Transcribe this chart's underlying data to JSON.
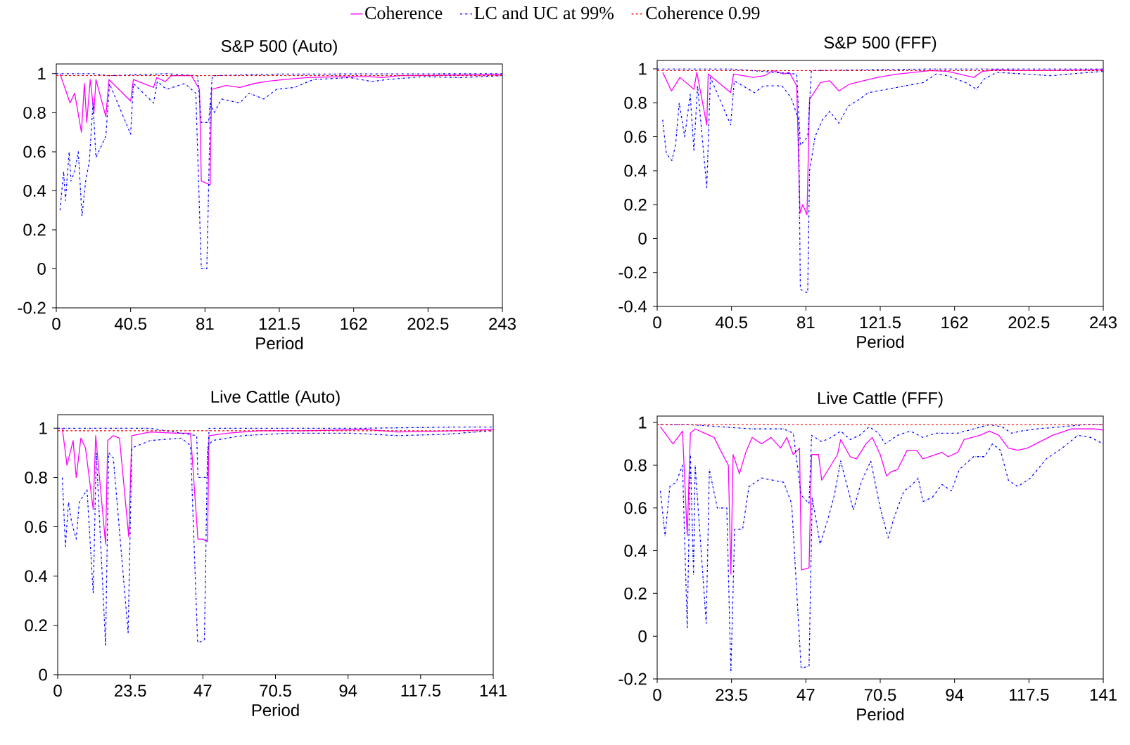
{
  "chart_data": [
    {
      "type": "line",
      "title": "S&P 500 (Auto)",
      "xlabel": "Period",
      "legend": "top",
      "xlim": [
        0,
        243
      ],
      "xticks": [
        0,
        40.5,
        81,
        121.5,
        162,
        202.5,
        243
      ],
      "ylim": [
        -0.2,
        1.05
      ],
      "yticks": [
        -0.2,
        0,
        0.2,
        0.4,
        0.6,
        0.8,
        1
      ],
      "ref_lines": [
        {
          "axis": "y",
          "value": 0.99,
          "label": "Coherence 0.99",
          "color": "#ff0000",
          "line_style": "dashed"
        }
      ],
      "series": [
        {
          "name": "Coherence",
          "color": "#ff00ff",
          "line_style": "solid",
          "x": [
            2,
            7.5,
            10,
            13.7,
            15.3,
            16.6,
            18.5,
            20.5,
            21.6,
            27,
            28.7,
            40.5,
            42,
            53,
            54.7,
            59.4,
            62.6,
            73.6,
            78,
            79,
            81.5,
            83.8,
            84.6,
            92.5,
            100,
            108,
            114.5,
            124,
            136.6,
            155.5,
            171,
            177.5,
            187,
            243
          ],
          "values": [
            1,
            0.85,
            0.9,
            0.7,
            0.95,
            0.75,
            0.97,
            0.8,
            0.97,
            0.78,
            0.97,
            0.86,
            0.97,
            0.93,
            0.98,
            0.96,
            0.99,
            0.99,
            0.92,
            0.45,
            0.44,
            0.43,
            0.92,
            0.94,
            0.93,
            0.95,
            0.96,
            0.97,
            0.98,
            0.985,
            0.985,
            0.98,
            0.99,
            0.995
          ]
        },
        {
          "name": "LC and UC at 99%",
          "color": "#0000ff",
          "line_style": "dashdot",
          "x": [
            2,
            4,
            5,
            7,
            8,
            10,
            12,
            14,
            16,
            18,
            20,
            21.6,
            27,
            29,
            40.5,
            42,
            53,
            55,
            60,
            70,
            76,
            79,
            82,
            84,
            86,
            90,
            100,
            105,
            113,
            120,
            130,
            140,
            160,
            172,
            180,
            200,
            220,
            243
          ],
          "values": [
            0.3,
            0.5,
            0.35,
            0.6,
            0.45,
            0.5,
            0.6,
            0.27,
            0.45,
            0.55,
            0.85,
            0.57,
            0.68,
            0.95,
            0.69,
            0.95,
            0.85,
            0.96,
            0.92,
            0.95,
            0.9,
            0,
            0,
            0.85,
            0.8,
            0.87,
            0.85,
            0.9,
            0.87,
            0.92,
            0.93,
            0.97,
            0.98,
            0.96,
            0.97,
            0.985,
            0.98,
            0.99
          ]
        },
        {
          "color": "#0000ff",
          "line_style": "dashdot",
          "x": [
            0,
            20,
            28,
            60,
            77,
            79,
            83,
            85,
            120,
            243
          ],
          "values": [
            1,
            1,
            0.99,
            1,
            0.99,
            0.75,
            0.75,
            0.99,
            0.998,
            1
          ]
        }
      ]
    },
    {
      "type": "line",
      "title": "S&P 500 (FFF)",
      "xlabel": "Period",
      "xlim": [
        0,
        243
      ],
      "xticks": [
        0,
        40.5,
        81,
        121.5,
        162,
        202.5,
        243
      ],
      "ylim": [
        -0.4,
        1.05
      ],
      "yticks": [
        -0.4,
        -0.2,
        0,
        0.2,
        0.4,
        0.6,
        0.8,
        1
      ],
      "ref_lines": [
        {
          "axis": "y",
          "value": 0.99,
          "color": "#ff0000",
          "line_style": "dashed"
        }
      ],
      "series": [
        {
          "color": "#ff00ff",
          "line_style": "solid",
          "x": [
            3,
            7.8,
            12.4,
            20,
            21.6,
            27,
            27.8,
            40,
            41.6,
            52.4,
            58.5,
            63,
            69,
            72,
            76,
            77.8,
            79.3,
            81.6,
            83,
            89,
            94,
            99,
            104.7,
            112.4,
            120,
            131,
            149,
            158.5,
            172.4,
            177,
            184.7,
            197,
            212,
            243
          ],
          "values": [
            0.98,
            0.87,
            0.95,
            0.88,
            0.98,
            0.67,
            0.97,
            0.86,
            0.97,
            0.95,
            0.96,
            0.99,
            0.97,
            0.98,
            0.9,
            0.15,
            0.2,
            0.14,
            0.82,
            0.92,
            0.93,
            0.87,
            0.91,
            0.93,
            0.95,
            0.97,
            0.99,
            0.985,
            0.95,
            0.985,
            0.995,
            0.99,
            0.99,
            0.995
          ]
        },
        {
          "color": "#0000ff",
          "line_style": "dashdot",
          "x": [
            3,
            5,
            8,
            10,
            12,
            15,
            18,
            20,
            22,
            27,
            29,
            40,
            42,
            53,
            58,
            68,
            73,
            77,
            78,
            82,
            83,
            86,
            90,
            94,
            99,
            104,
            110,
            115,
            120,
            125,
            135,
            145,
            152,
            158,
            168,
            174,
            178,
            185,
            200,
            215,
            230,
            243
          ],
          "values": [
            0.7,
            0.5,
            0.46,
            0.55,
            0.8,
            0.6,
            0.85,
            0.52,
            0.9,
            0.3,
            0.95,
            0.67,
            0.93,
            0.86,
            0.9,
            0.9,
            0.83,
            0.7,
            -0.3,
            -0.32,
            0.4,
            0.6,
            0.7,
            0.75,
            0.68,
            0.78,
            0.82,
            0.86,
            0.87,
            0.88,
            0.9,
            0.92,
            0.97,
            0.96,
            0.92,
            0.88,
            0.94,
            0.98,
            0.97,
            0.96,
            0.975,
            0.985
          ]
        },
        {
          "color": "#0000ff",
          "line_style": "dashdot",
          "x": [
            0,
            40,
            76,
            78,
            82,
            84,
            150,
            243
          ],
          "values": [
            1,
            1,
            0.97,
            0.55,
            0.6,
            0.99,
            1,
            1
          ]
        }
      ]
    },
    {
      "type": "line",
      "title": "Live Cattle (Auto)",
      "xlabel": "Period",
      "xlim": [
        0,
        141
      ],
      "xticks": [
        0,
        23.5,
        47,
        70.5,
        94,
        117.5,
        141
      ],
      "ylim": [
        0,
        1.055
      ],
      "yticks": [
        0,
        0.2,
        0.4,
        0.6,
        0.8,
        1
      ],
      "ref_lines": [
        {
          "axis": "y",
          "value": 0.99,
          "color": "#ff0000",
          "line_style": "dashed"
        }
      ],
      "series": [
        {
          "color": "#ff00ff",
          "line_style": "solid",
          "x": [
            1.5,
            3,
            5,
            6,
            7.5,
            9,
            11.5,
            12.3,
            15.5,
            16.2,
            18,
            20,
            23,
            24,
            30,
            38,
            43,
            45.4,
            47,
            48.5,
            49,
            55,
            65,
            80,
            100,
            110,
            130,
            141
          ],
          "values": [
            1,
            0.85,
            0.95,
            0.8,
            0.96,
            0.92,
            0.67,
            0.97,
            0.53,
            0.95,
            0.97,
            0.96,
            0.56,
            0.97,
            0.985,
            0.98,
            0.98,
            0.55,
            0.55,
            0.54,
            0.97,
            0.98,
            0.99,
            0.99,
            0.995,
            0.985,
            0.99,
            0.995
          ]
        },
        {
          "color": "#0000ff",
          "line_style": "dashdot",
          "x": [
            1.5,
            2.5,
            3.5,
            4.5,
            6,
            7,
            9.5,
            11.5,
            12.5,
            15.5,
            16.5,
            18,
            22.8,
            24,
            30,
            40,
            43,
            45.3,
            47.5,
            48.5,
            50,
            60,
            75,
            95,
            110,
            125,
            141
          ],
          "values": [
            0.8,
            0.52,
            0.7,
            0.62,
            0.55,
            0.7,
            0.75,
            0.33,
            0.9,
            0.12,
            0.9,
            0.88,
            0.17,
            0.92,
            0.95,
            0.96,
            0.93,
            0.13,
            0.14,
            0.92,
            0.95,
            0.97,
            0.98,
            0.98,
            0.97,
            0.975,
            0.99
          ]
        },
        {
          "color": "#0000ff",
          "line_style": "dashdot",
          "x": [
            0,
            30,
            45,
            45.4,
            48.4,
            49,
            100,
            130,
            141
          ],
          "values": [
            1,
            1,
            0.97,
            0.8,
            0.8,
            1,
            1,
            1.005,
            1.005
          ]
        }
      ]
    },
    {
      "type": "line",
      "title": "Live Cattle (FFF)",
      "xlabel": "Period",
      "xlim": [
        0,
        141
      ],
      "xticks": [
        0,
        23.5,
        47,
        70.5,
        94,
        117.5,
        141
      ],
      "ylim": [
        -0.2,
        1.03
      ],
      "yticks": [
        -0.2,
        0,
        0.2,
        0.4,
        0.6,
        0.8,
        1
      ],
      "ref_lines": [
        {
          "axis": "y",
          "value": 0.99,
          "color": "#ff0000",
          "line_style": "dashed"
        }
      ],
      "series": [
        {
          "color": "#ff00ff",
          "line_style": "solid",
          "x": [
            1,
            5,
            8,
            9.5,
            10.5,
            12,
            15,
            18,
            20,
            22.5,
            23.3,
            24,
            26,
            28,
            30,
            33,
            36,
            39,
            41,
            43,
            45,
            45.6,
            48,
            48.8,
            51,
            52,
            54.5,
            57,
            58,
            61,
            63,
            66,
            68,
            70.5,
            72.5,
            74,
            76,
            79,
            82,
            84,
            86,
            90,
            92,
            95,
            97,
            102,
            105,
            108,
            111,
            114,
            117,
            125,
            131,
            138,
            141
          ],
          "values": [
            0.98,
            0.9,
            0.96,
            0.47,
            0.95,
            0.97,
            0.95,
            0.93,
            0.87,
            0.8,
            0.29,
            0.85,
            0.76,
            0.86,
            0.93,
            0.9,
            0.93,
            0.88,
            0.93,
            0.85,
            0.88,
            0.31,
            0.32,
            0.85,
            0.85,
            0.73,
            0.79,
            0.85,
            0.92,
            0.84,
            0.83,
            0.9,
            0.93,
            0.85,
            0.75,
            0.77,
            0.78,
            0.87,
            0.87,
            0.83,
            0.84,
            0.86,
            0.84,
            0.86,
            0.92,
            0.94,
            0.96,
            0.94,
            0.88,
            0.87,
            0.88,
            0.94,
            0.97,
            0.97,
            0.965
          ]
        },
        {
          "color": "#0000ff",
          "line_style": "dashdot",
          "x": [
            1,
            2.5,
            4,
            6,
            8,
            9.5,
            10.5,
            11.5,
            12,
            15.5,
            16.5,
            19,
            22,
            23.3,
            24.5,
            27,
            29,
            33,
            40,
            42.5,
            45.5,
            48,
            49,
            51.5,
            54,
            56,
            58,
            62,
            64.5,
            67.5,
            70.5,
            73,
            75,
            78,
            80,
            82.5,
            84,
            87,
            90,
            93,
            95.5,
            100,
            103.5,
            106,
            108.5,
            111,
            114,
            118,
            123,
            128,
            133,
            137,
            141
          ],
          "values": [
            0.68,
            0.47,
            0.7,
            0.72,
            0.8,
            0.04,
            0.85,
            0.29,
            0.8,
            0.06,
            0.78,
            0.6,
            0.6,
            -0.17,
            0.5,
            0.5,
            0.7,
            0.74,
            0.72,
            0.62,
            -0.15,
            -0.14,
            0.65,
            0.43,
            0.55,
            0.66,
            0.82,
            0.59,
            0.72,
            0.82,
            0.6,
            0.46,
            0.56,
            0.68,
            0.7,
            0.74,
            0.63,
            0.65,
            0.71,
            0.68,
            0.78,
            0.84,
            0.84,
            0.9,
            0.87,
            0.73,
            0.7,
            0.74,
            0.83,
            0.88,
            0.94,
            0.93,
            0.9
          ]
        },
        {
          "color": "#0000ff",
          "line_style": "dashdot",
          "x": [
            1,
            10,
            20,
            30,
            40,
            43,
            45.5,
            48,
            48.8,
            52,
            55,
            58,
            61,
            64,
            67,
            70,
            72,
            76,
            80,
            84,
            88,
            95,
            100,
            105,
            109,
            112,
            115,
            120,
            128,
            135,
            141
          ],
          "values": [
            0.99,
            0.99,
            0.98,
            0.97,
            0.97,
            0.95,
            0.66,
            0.62,
            0.94,
            0.91,
            0.93,
            0.96,
            0.92,
            0.94,
            0.98,
            0.95,
            0.9,
            0.94,
            0.96,
            0.93,
            0.95,
            0.95,
            0.97,
            0.99,
            0.98,
            0.95,
            0.96,
            0.97,
            0.98,
            0.99,
            0.99
          ]
        }
      ]
    }
  ]
}
